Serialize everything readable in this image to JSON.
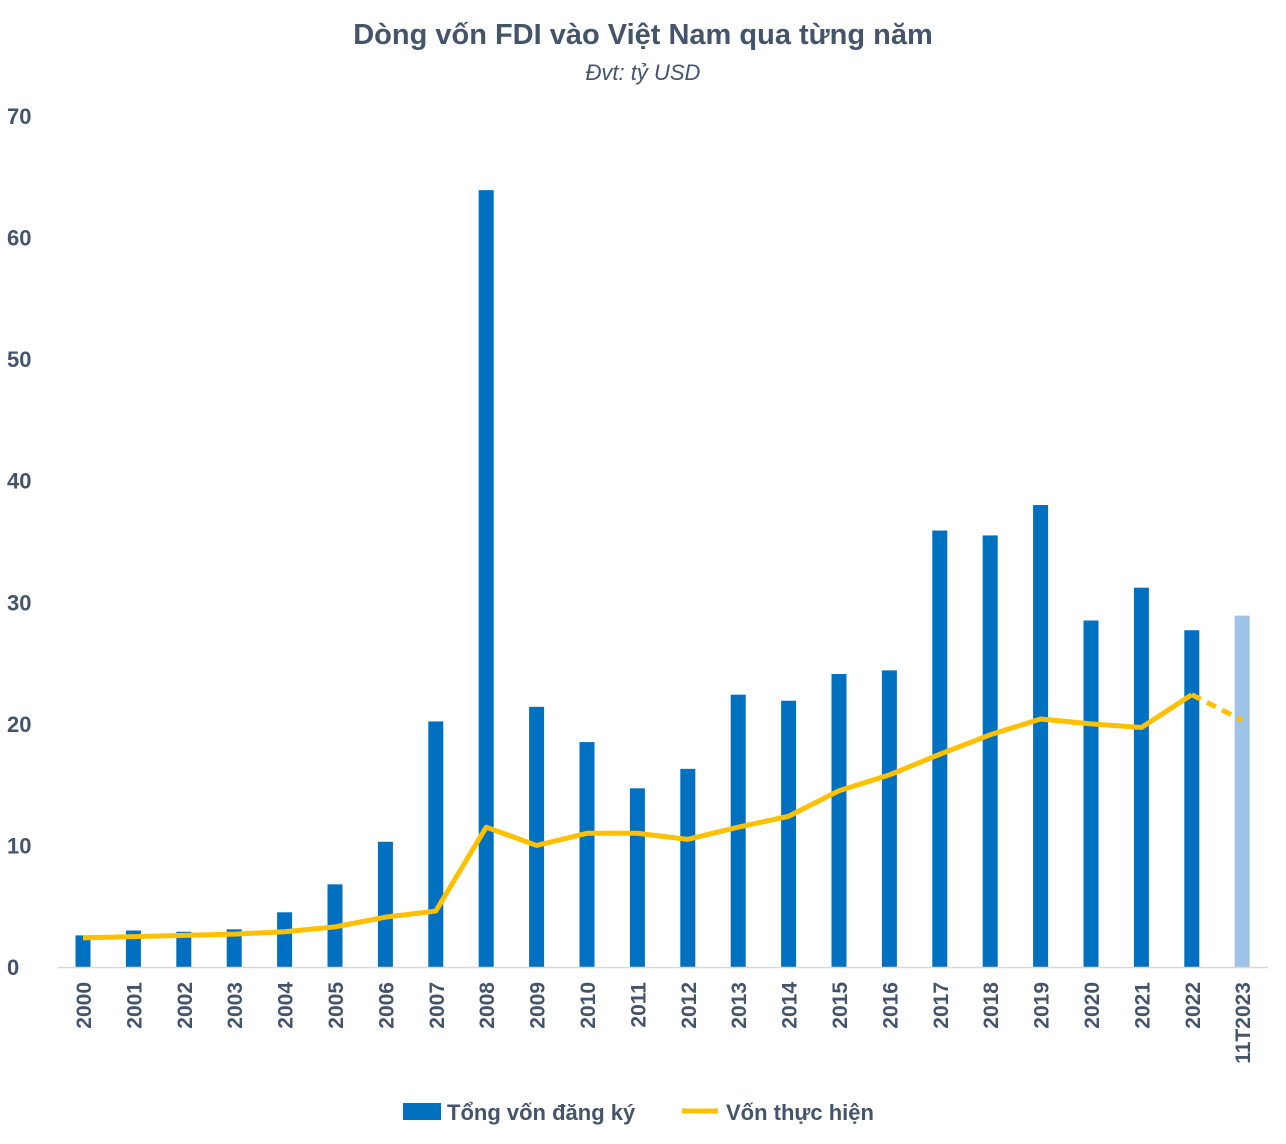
{
  "chart_data": {
    "type": "bar+line",
    "title": "Dòng vốn FDI vào Việt Nam qua từng năm",
    "subtitle": "Đvt: tỷ USD",
    "xlabel": "",
    "ylabel": "",
    "ylim": [
      0,
      70
    ],
    "yticks": [
      0,
      10,
      20,
      30,
      40,
      50,
      60,
      70
    ],
    "grid": false,
    "legend_position": "bottom",
    "categories": [
      "2000",
      "2001",
      "2002",
      "2003",
      "2004",
      "2005",
      "2006",
      "2007",
      "2008",
      "2009",
      "2010",
      "2011",
      "2012",
      "2013",
      "2014",
      "2015",
      "2016",
      "2017",
      "2018",
      "2019",
      "2020",
      "2021",
      "2022",
      "11T2023"
    ],
    "series": [
      {
        "name": "Tổng vốn đăng ký",
        "type": "bar",
        "color": "#0070c0",
        "highlight_last_color": "#9dc3e6",
        "values": [
          2.6,
          3.0,
          2.9,
          3.1,
          4.5,
          6.8,
          10.3,
          20.2,
          63.9,
          21.4,
          18.5,
          14.7,
          16.3,
          22.4,
          21.9,
          24.1,
          24.4,
          35.9,
          35.5,
          38.0,
          28.5,
          31.2,
          27.7,
          28.9
        ]
      },
      {
        "name": "Vốn thực hiện",
        "type": "line",
        "color": "#ffc000",
        "dashed_last_segment": true,
        "values": [
          2.4,
          2.5,
          2.6,
          2.7,
          2.9,
          3.3,
          4.1,
          4.6,
          11.5,
          10.0,
          11.0,
          11.0,
          10.5,
          11.5,
          12.4,
          14.5,
          15.8,
          17.5,
          19.1,
          20.4,
          20.0,
          19.7,
          22.4,
          20.3
        ]
      }
    ]
  }
}
